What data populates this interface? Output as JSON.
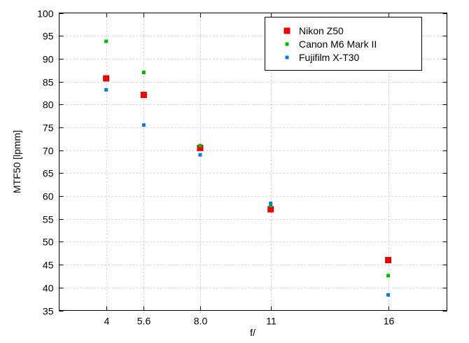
{
  "chart_data": {
    "type": "scatter",
    "xlabel": "f/",
    "ylabel": "MTF50 [lpmm]",
    "categories": [
      "4",
      "5.6",
      "8.0",
      "11",
      "16"
    ],
    "xlim": [
      2.0,
      18.5
    ],
    "x_positions": [
      4.0,
      5.6,
      8.0,
      11.0,
      16.0
    ],
    "ylim": [
      35,
      100
    ],
    "yticks": [
      35,
      40,
      45,
      50,
      55,
      60,
      65,
      70,
      75,
      80,
      85,
      90,
      95,
      100
    ],
    "grid": true,
    "legend_position": "top-right",
    "series": [
      {
        "name": "Nikon Z50",
        "color": "#ee0000",
        "marker": "large-square",
        "values": [
          85.7,
          82.1,
          70.5,
          57.1,
          46.0
        ]
      },
      {
        "name": "Canon M6 Mark II",
        "color": "#00bb00",
        "marker": "small-square",
        "values": [
          93.8,
          87.0,
          71.0,
          57.9,
          42.6
        ]
      },
      {
        "name": "Fujifilm X-T30",
        "color": "#1177dd",
        "marker": "small-square",
        "values": [
          83.2,
          75.5,
          69.0,
          58.4,
          38.4
        ]
      }
    ]
  }
}
